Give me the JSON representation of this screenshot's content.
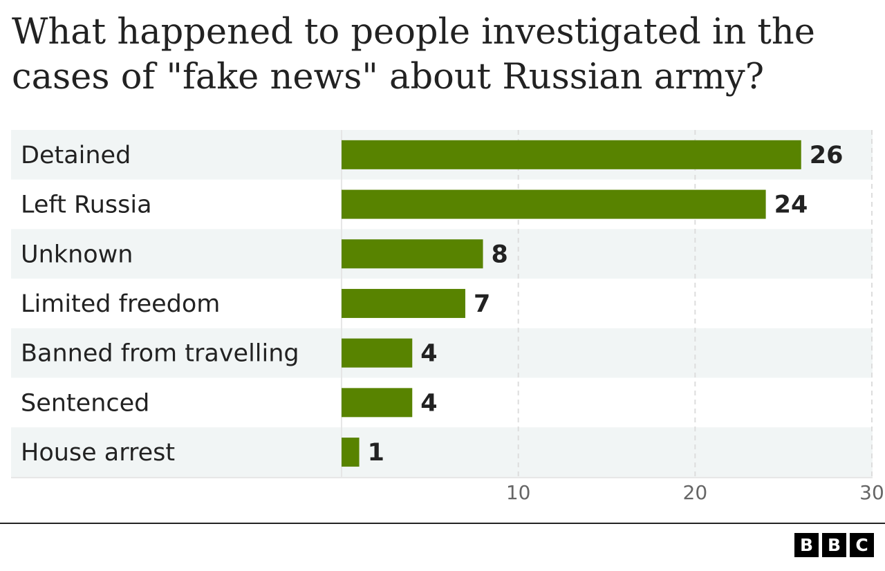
{
  "title": "What happened to people investigated in the cases of \"fake news\" about Russian army?",
  "chart_data": {
    "type": "bar",
    "orientation": "horizontal",
    "categories": [
      "Detained",
      "Left Russia",
      "Unknown",
      "Limited freedom",
      "Banned from travelling",
      "Sentenced",
      "House arrest"
    ],
    "values": [
      26,
      24,
      8,
      7,
      4,
      4,
      1
    ],
    "xlim": [
      0,
      30
    ],
    "xticks": [
      10,
      20,
      30
    ],
    "grid": "vertical dashed",
    "bar_color": "#588300",
    "row_stripe_color": "#f1f5f5"
  },
  "logo": {
    "letters": [
      "B",
      "B",
      "C"
    ]
  }
}
